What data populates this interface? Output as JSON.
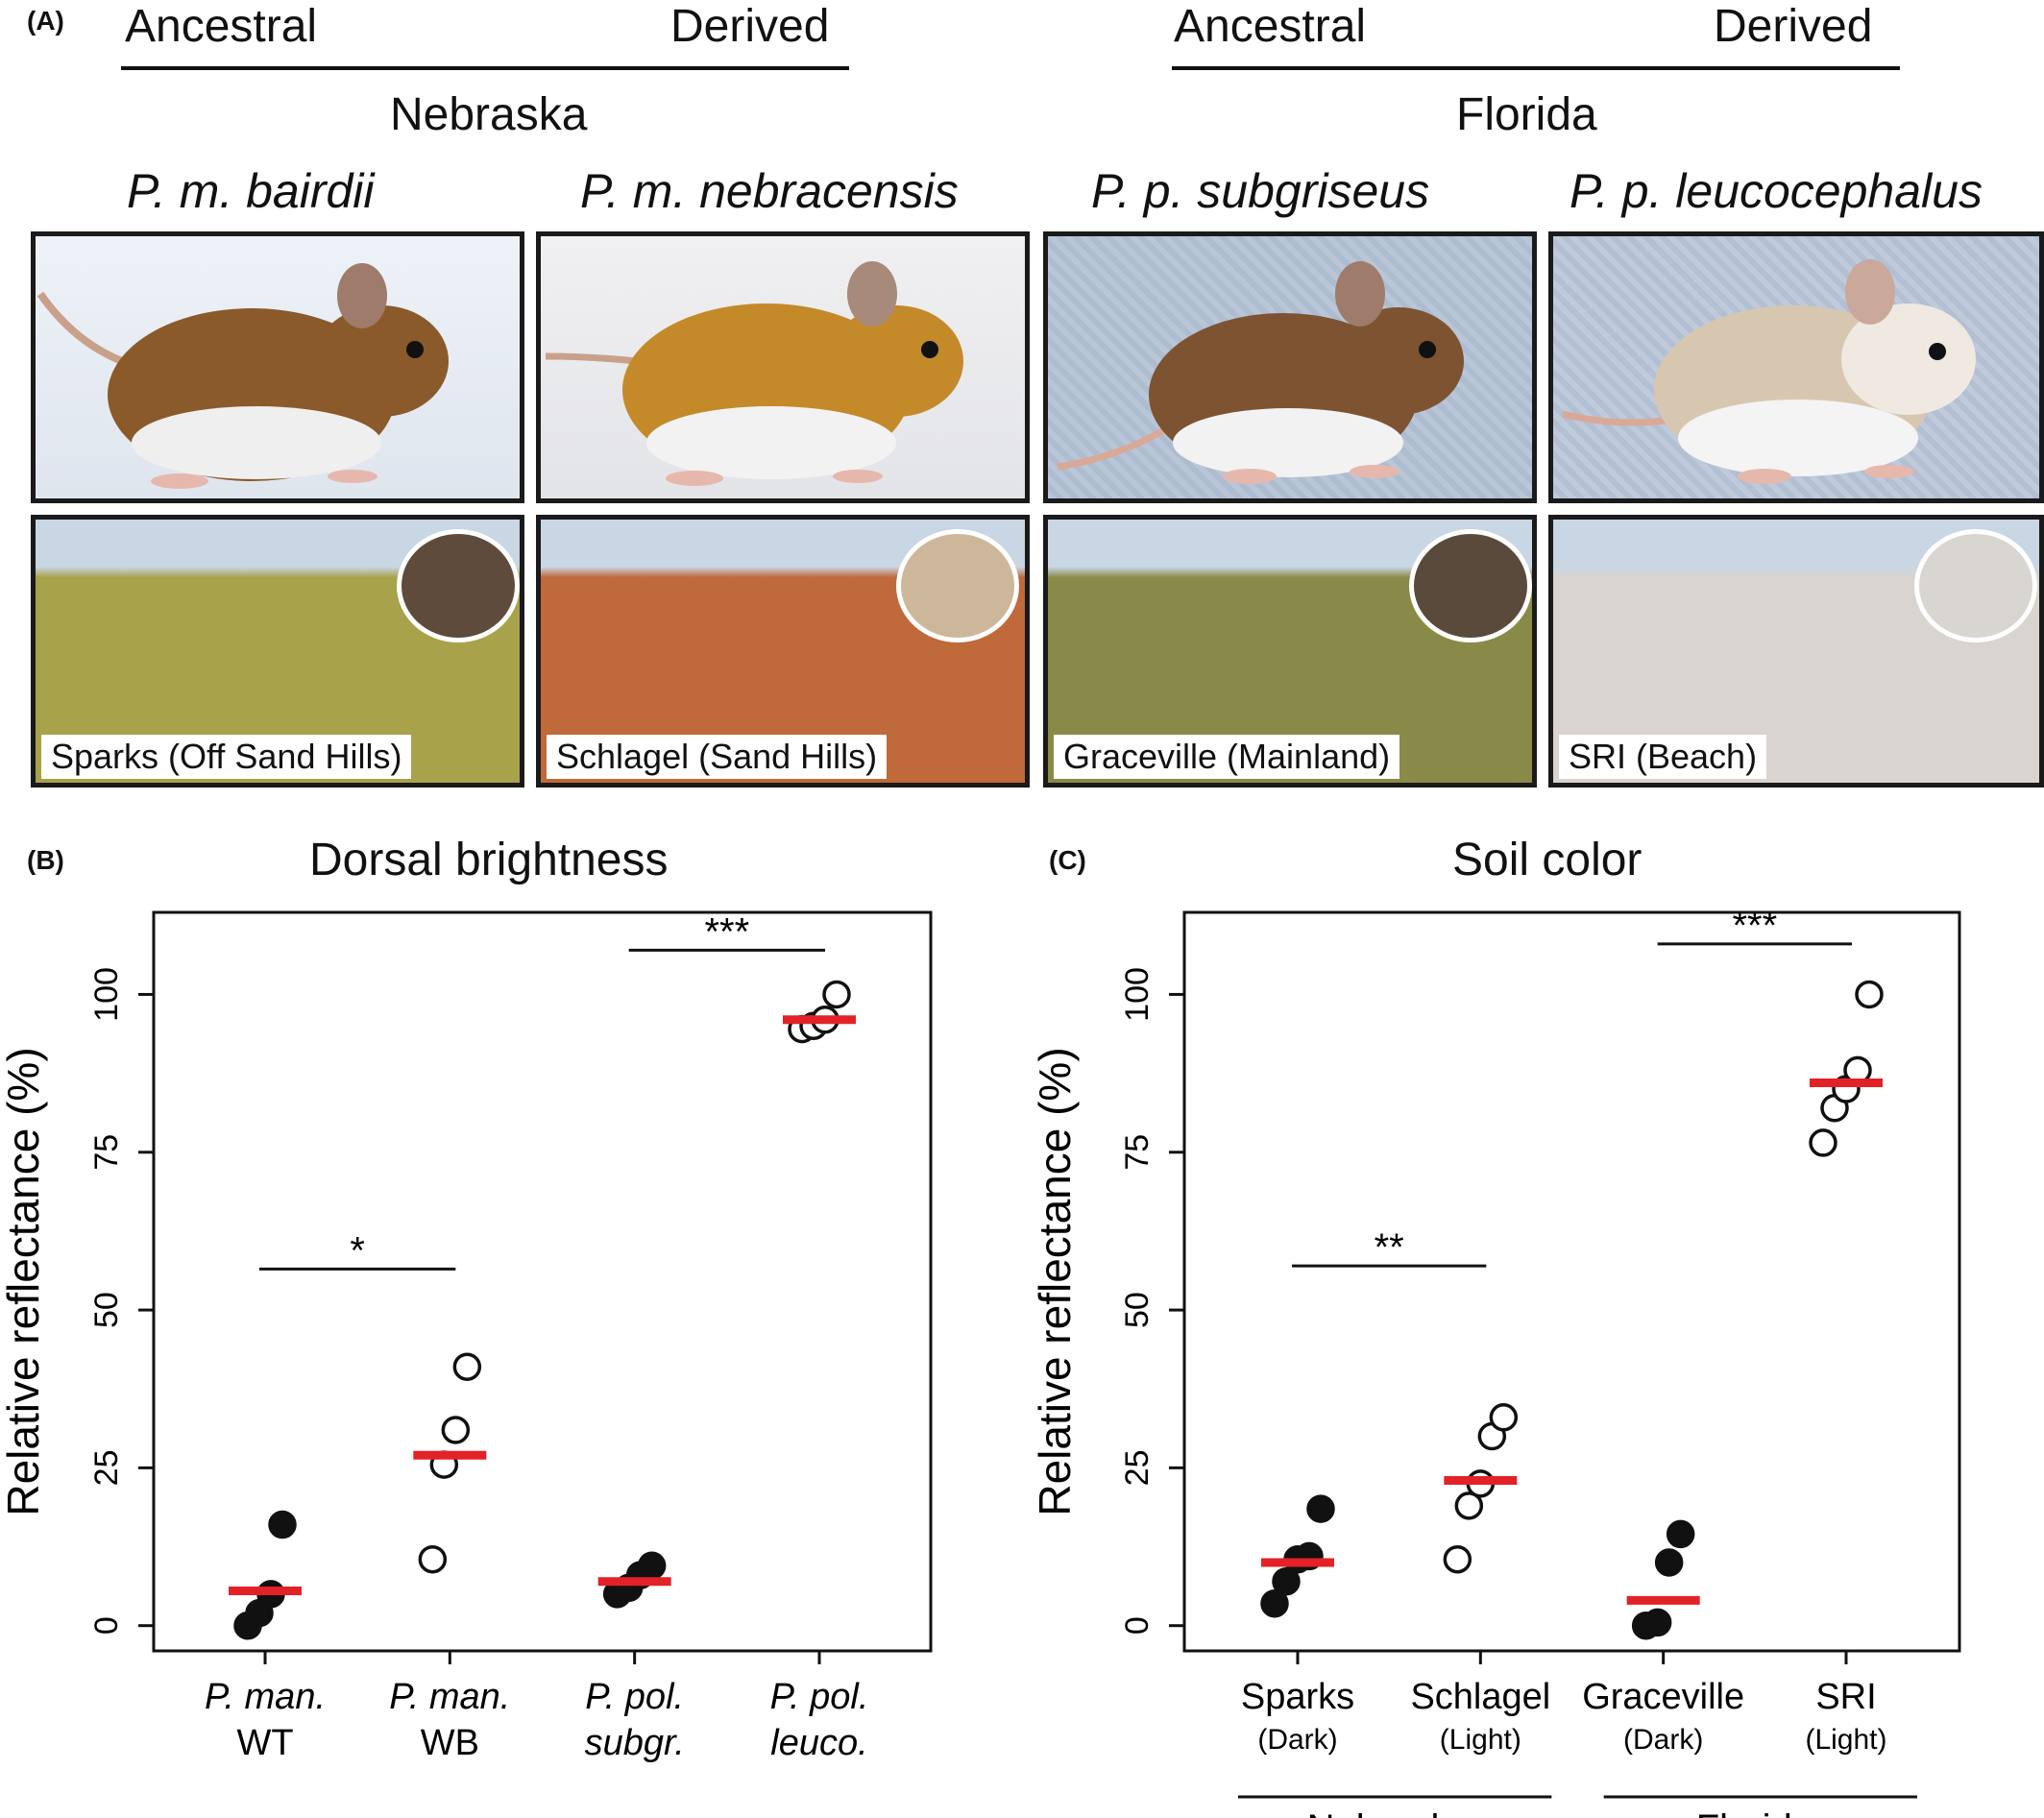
{
  "panel_a": {
    "tag": "(A)",
    "groups": [
      {
        "ancestral": "Ancestral",
        "derived": "Derived",
        "region": "Nebraska"
      },
      {
        "ancestral": "Ancestral",
        "derived": "Derived",
        "region": "Florida"
      }
    ],
    "species": [
      "P. m. bairdii",
      "P. m. nebracensis",
      "P. p. subgriseus",
      "P. p. leucocephalus"
    ],
    "habitats": [
      "Sparks (Off Sand Hills)",
      "Schlagel (Sand Hills)",
      "Graceville (Mainland)",
      "SRI (Beach)"
    ],
    "mouse_colors": [
      "#8a5a2b",
      "#c48a2a",
      "#7d5332",
      "#d8c7b0"
    ],
    "habitat_colors": [
      "#a8a24a",
      "#c0693a",
      "#8a8a48",
      "#d9d4cf"
    ],
    "soil_colors": [
      "#5e4b3c",
      "#cdb79a",
      "#5a4a3b",
      "#d9d5d0"
    ]
  },
  "chart_data": [
    {
      "panel_tag": "(B)",
      "type": "scatter",
      "title": "Dorsal brightness",
      "ylabel": "Relative reflectance (%)",
      "ylim": [
        -4,
        113
      ],
      "yticks": [
        0,
        25,
        50,
        75,
        100
      ],
      "categories": [
        {
          "line1": "P. man.",
          "line2": "WT",
          "italic2": false
        },
        {
          "line1": "P. man.",
          "line2": "WB",
          "italic2": false
        },
        {
          "line1": "P. pol.",
          "line2": "subgr.",
          "italic2": true
        },
        {
          "line1": "P. pol.",
          "line2": "leuco.",
          "italic2": true
        }
      ],
      "groups": [
        {
          "filled": true,
          "mean": 5.5,
          "points": [
            0,
            2,
            5,
            16
          ]
        },
        {
          "filled": false,
          "mean": 27,
          "points": [
            10.5,
            25.5,
            31,
            41
          ]
        },
        {
          "filled": true,
          "mean": 7,
          "points": [
            5,
            6,
            8,
            9.5
          ]
        },
        {
          "filled": false,
          "mean": 96,
          "points": [
            94.5,
            95,
            96,
            100
          ]
        }
      ],
      "significance": [
        {
          "from": 0,
          "to": 1,
          "y": 56.5,
          "label": "*"
        },
        {
          "from": 2,
          "to": 3,
          "y": 107,
          "label": "***"
        }
      ],
      "region_labels": [],
      "colors": {
        "mean": "#e32228",
        "point": "#111111"
      }
    },
    {
      "panel_tag": "(C)",
      "type": "scatter",
      "title": "Soil color",
      "ylabel": "Relative reflectance (%)",
      "ylim": [
        -4,
        113
      ],
      "yticks": [
        0,
        25,
        50,
        75,
        100
      ],
      "categories": [
        {
          "line1": "Sparks",
          "line2": "(Dark)",
          "italic2": false
        },
        {
          "line1": "Schlagel",
          "line2": "(Light)",
          "italic2": false
        },
        {
          "line1": "Graceville",
          "line2": "(Dark)",
          "italic2": false
        },
        {
          "line1": "SRI",
          "line2": "(Light)",
          "italic2": false
        }
      ],
      "groups": [
        {
          "filled": true,
          "mean": 10,
          "points": [
            3.5,
            7,
            10.5,
            11,
            18.5
          ]
        },
        {
          "filled": false,
          "mean": 23,
          "points": [
            10.5,
            19,
            22.5,
            30,
            33
          ]
        },
        {
          "filled": true,
          "mean": 4,
          "points": [
            0,
            0.5,
            10,
            14.5
          ]
        },
        {
          "filled": false,
          "mean": 86,
          "points": [
            76.5,
            82,
            85,
            88,
            100
          ]
        }
      ],
      "significance": [
        {
          "from": 0,
          "to": 1,
          "y": 57,
          "label": "**"
        },
        {
          "from": 2,
          "to": 3,
          "y": 108,
          "label": "***"
        }
      ],
      "region_labels": [
        {
          "from": 0,
          "to": 1,
          "label": "Nebraska"
        },
        {
          "from": 2,
          "to": 3,
          "label": "Florida"
        }
      ],
      "colors": {
        "mean": "#e32228",
        "point": "#111111"
      }
    }
  ]
}
